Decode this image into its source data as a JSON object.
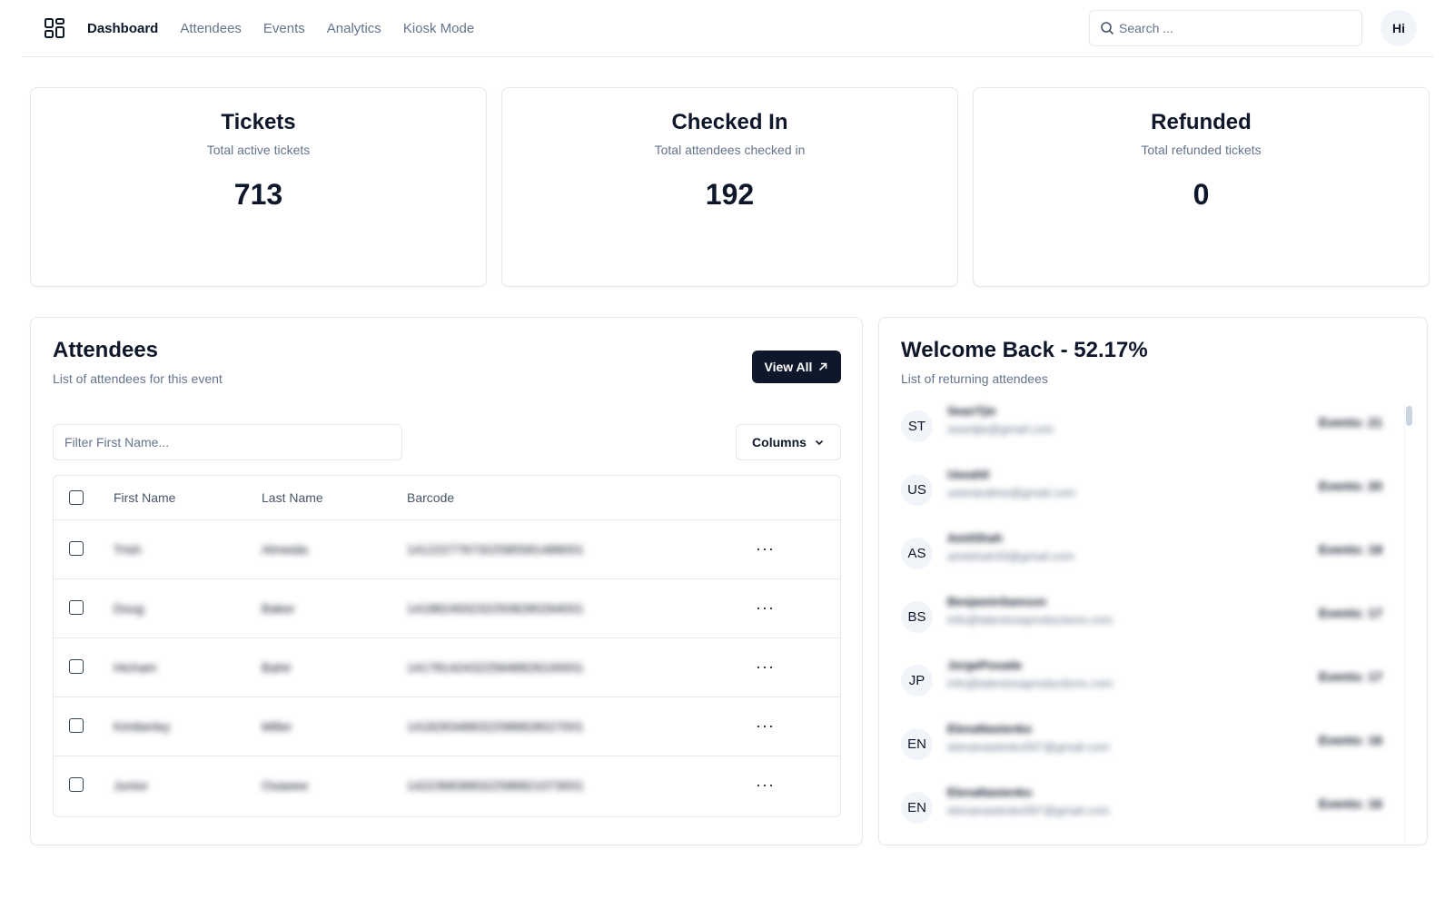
{
  "nav": {
    "links": [
      "Dashboard",
      "Attendees",
      "Events",
      "Analytics",
      "Kiosk Mode"
    ],
    "active": "Dashboard",
    "search_placeholder": "Search ...",
    "avatar": "Hi"
  },
  "stats": [
    {
      "title": "Tickets",
      "subtitle": "Total active tickets",
      "value": "713"
    },
    {
      "title": "Checked In",
      "subtitle": "Total attendees checked in",
      "value": "192"
    },
    {
      "title": "Refunded",
      "subtitle": "Total refunded tickets",
      "value": "0"
    }
  ],
  "attendees": {
    "title": "Attendees",
    "subtitle": "List of attendees for this event",
    "view_all": "View All",
    "filter_placeholder": "Filter First Name...",
    "columns_label": "Columns",
    "headers": [
      "First Name",
      "Last Name",
      "Barcode"
    ],
    "rows": [
      {
        "first": "Trish",
        "last": "Almeida",
        "barcode": "1412227767322585581488001"
      },
      {
        "first": "Doug",
        "last": "Baker",
        "barcode": "1418824932322508280264001"
      },
      {
        "first": "Hicham",
        "last": "Bahir",
        "barcode": "1417814243225848828100001"
      },
      {
        "first": "Kimberley",
        "last": "Miller",
        "barcode": "1418283488322588828027001"
      },
      {
        "first": "Junior",
        "last": "Osawee",
        "barcode": "1422368388322588821073001"
      }
    ]
  },
  "returning": {
    "title": "Welcome Back - 52.17%",
    "subtitle": "List of returning attendees",
    "items": [
      {
        "initials": "ST",
        "name": "SeanTjie",
        "email": "seantjie@gmail.com",
        "events": "Events: 21"
      },
      {
        "initials": "US",
        "name": "Ueeahli",
        "email": "ueenaralme@gmail.com",
        "events": "Events: 20"
      },
      {
        "initials": "AS",
        "name": "AmitShah",
        "email": "amitshah33@gmail.com",
        "events": "Events: 18"
      },
      {
        "initials": "BS",
        "name": "BenjaminSamson",
        "email": "info@talentosaproductions.com",
        "events": "Events: 17"
      },
      {
        "initials": "JP",
        "name": "JorgePosada",
        "email": "info@talentosaproductions.com",
        "events": "Events: 17"
      },
      {
        "initials": "EN",
        "name": "ElenaNastenko",
        "email": "elenanastenko597@gmail.com",
        "events": "Events: 16"
      },
      {
        "initials": "EN",
        "name": "ElenaNastenko",
        "email": "elenanastenko597@gmail.com",
        "events": "Events: 16"
      }
    ]
  }
}
